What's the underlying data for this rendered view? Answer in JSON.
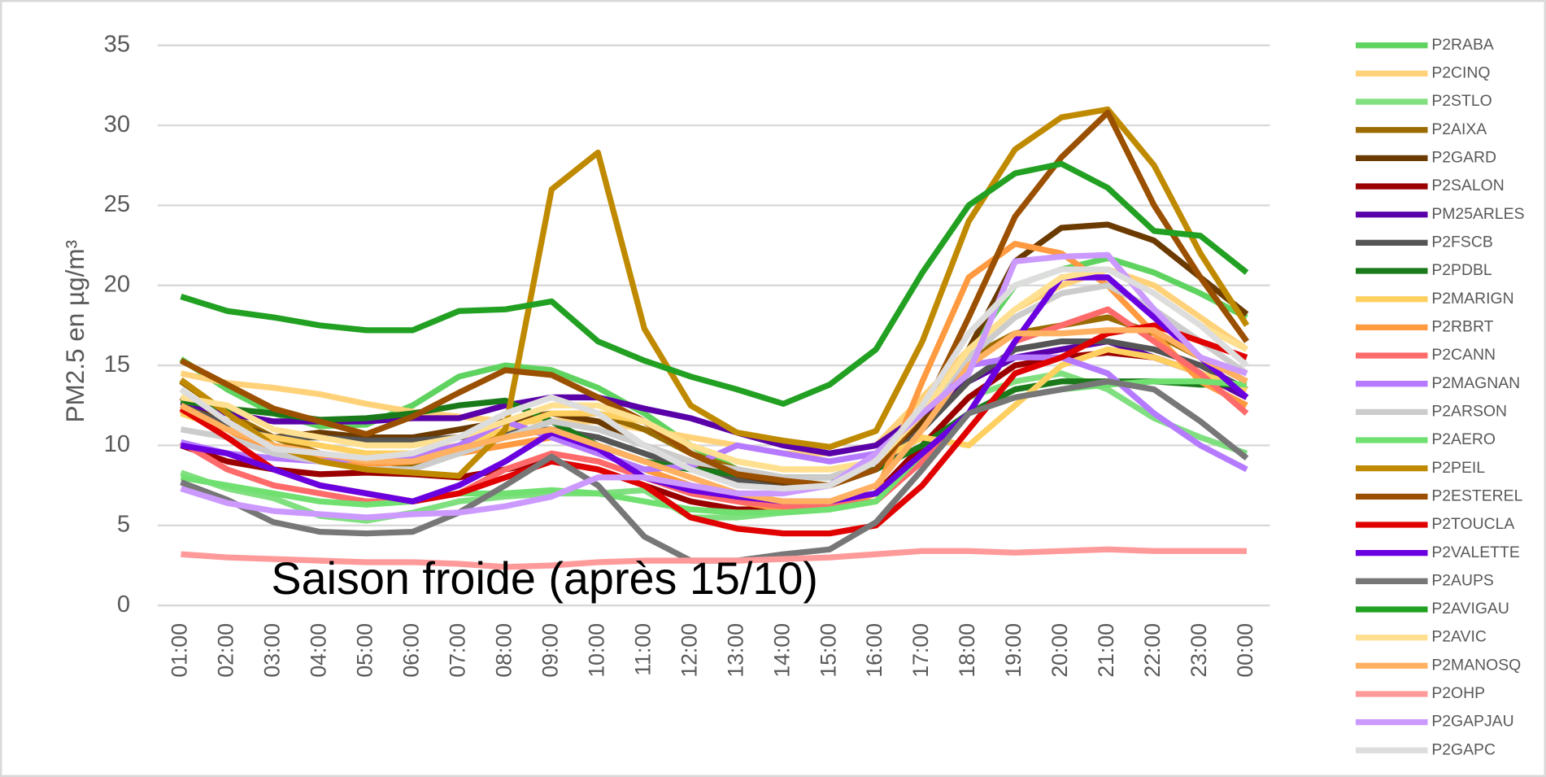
{
  "chart_data": {
    "type": "line",
    "y_label": "PM2.5 en µg/m³",
    "annotation": "Saison froide (après 15/10)",
    "categories": [
      "01:00",
      "02:00",
      "03:00",
      "04:00",
      "05:00",
      "06:00",
      "07:00",
      "08:00",
      "09:00",
      "10:00",
      "11:00",
      "12:00",
      "13:00",
      "14:00",
      "15:00",
      "16:00",
      "17:00",
      "18:00",
      "19:00",
      "20:00",
      "21:00",
      "22:00",
      "23:00",
      "00:00"
    ],
    "ylim": [
      0,
      35
    ],
    "yticks": [
      0,
      5,
      10,
      15,
      20,
      25,
      30,
      35
    ],
    "grid": true,
    "legend": "right",
    "series": [
      {
        "name": "P2RABA",
        "color": "#5fd35f",
        "values": [
          15.4,
          13.5,
          12,
          11.2,
          11.3,
          12.5,
          14.3,
          15,
          14.7,
          13.6,
          12,
          10,
          8.5,
          8,
          8,
          8.5,
          12,
          16,
          20,
          21,
          21.7,
          20.8,
          19.5,
          18
        ]
      },
      {
        "name": "P2CINQ",
        "color": "#ffd27a",
        "values": [
          14.5,
          13.9,
          13.6,
          13.2,
          12.6,
          12.1,
          11.8,
          11.5,
          11.5,
          11.5,
          11,
          10.5,
          10,
          9.5,
          9.5,
          10,
          13,
          16,
          18.5,
          20,
          21,
          20,
          18,
          16
        ]
      },
      {
        "name": "P2STLO",
        "color": "#80e080",
        "values": [
          8.3,
          7.3,
          6.7,
          5.6,
          5.3,
          5.8,
          6.5,
          6.8,
          7,
          7,
          7.2,
          5.5,
          5.5,
          5.8,
          6,
          7,
          10,
          13,
          14,
          14.5,
          13.5,
          11.7,
          10.5,
          9.5
        ]
      },
      {
        "name": "P2AIXA",
        "color": "#9a6b00",
        "values": [
          14,
          12,
          10.5,
          9.5,
          9,
          8.8,
          9.5,
          11,
          12,
          12,
          11,
          9.5,
          8.5,
          8,
          8,
          9,
          12,
          15.5,
          17,
          17.5,
          18,
          17,
          15.5,
          14
        ]
      },
      {
        "name": "P2GARD",
        "color": "#6b3a00",
        "values": [
          13,
          11.5,
          10.5,
          10.8,
          10.5,
          10.5,
          11,
          11.5,
          12,
          11.5,
          10,
          9,
          8,
          7.5,
          7.5,
          8.5,
          11.5,
          16,
          21.5,
          23.6,
          23.8,
          22.8,
          20.5,
          18.2
        ]
      },
      {
        "name": "P2SALON",
        "color": "#9b0000",
        "values": [
          10,
          9,
          8.5,
          8.2,
          8.3,
          8.2,
          8,
          8.5,
          9,
          8.5,
          7.5,
          6.5,
          6,
          6,
          6.5,
          7,
          10,
          13,
          15,
          15.5,
          15.8,
          15.5,
          14.5,
          13
        ]
      },
      {
        "name": "PM25ARLES",
        "color": "#5a00a8",
        "values": [
          12.7,
          12,
          11.5,
          11.5,
          11.5,
          11.7,
          11.7,
          12.5,
          13,
          13,
          12.3,
          11.7,
          10.8,
          10,
          9.5,
          10,
          12,
          14,
          15.5,
          16,
          16.5,
          15.5,
          14.5,
          13
        ]
      },
      {
        "name": "P2FSCB",
        "color": "#555555",
        "values": [
          12.5,
          11.3,
          10.5,
          10.5,
          10.3,
          10.3,
          10.5,
          10.8,
          11,
          10.5,
          9.5,
          8.5,
          7.8,
          7.3,
          7.5,
          8.5,
          11,
          14,
          16,
          16.5,
          16.5,
          16,
          15,
          13.5
        ]
      },
      {
        "name": "P2PDBL",
        "color": "#1a7a1a",
        "values": [
          12.8,
          12.3,
          12,
          11.6,
          11.7,
          12,
          12.5,
          12.8,
          11.5,
          10,
          9,
          8.5,
          8.2,
          8,
          8,
          8.5,
          10,
          12,
          13.5,
          14,
          14,
          14,
          13.8,
          13.8
        ]
      },
      {
        "name": "P2MARIGN",
        "color": "#ffd060",
        "values": [
          12,
          11,
          10.5,
          10,
          9.5,
          9.5,
          10,
          11,
          12,
          12,
          11.5,
          10,
          9,
          8.5,
          8.5,
          9,
          10.5,
          10,
          12.5,
          15,
          16,
          15.5,
          14.5,
          13.5
        ]
      },
      {
        "name": "P2RBRT",
        "color": "#ff9a40",
        "values": [
          12.2,
          11,
          9.5,
          9.2,
          8.8,
          9,
          9.5,
          10,
          10.5,
          9.5,
          8.5,
          7.5,
          6.5,
          6,
          6,
          7,
          14,
          20.5,
          22.6,
          22,
          20,
          17,
          14,
          12.5
        ]
      },
      {
        "name": "P2CANN",
        "color": "#ff6a6a",
        "values": [
          10.2,
          8.5,
          7.5,
          7,
          6.5,
          6.5,
          7,
          8.5,
          9.5,
          9,
          8,
          7,
          6.5,
          6.2,
          6.2,
          6.5,
          9,
          12,
          16.5,
          17.5,
          18.5,
          16.5,
          14.5,
          12
        ]
      },
      {
        "name": "P2MAGNAN",
        "color": "#b57aff",
        "values": [
          10.2,
          9.5,
          9.2,
          9,
          9.2,
          9.3,
          10,
          11.5,
          10.5,
          9.5,
          8.5,
          8.7,
          10,
          9.5,
          9,
          9.5,
          12,
          15,
          15.5,
          15.5,
          14.5,
          12,
          10,
          8.5
        ]
      },
      {
        "name": "P2ARSON",
        "color": "#cccccc",
        "values": [
          11,
          10.5,
          9.5,
          9,
          8.5,
          8.5,
          9.5,
          10.5,
          11.5,
          11,
          10,
          9,
          8.5,
          8,
          8,
          9,
          12,
          15.5,
          18,
          19.5,
          20,
          18.5,
          16.5,
          14.5
        ]
      },
      {
        "name": "P2AERO",
        "color": "#70e070",
        "values": [
          8,
          7.5,
          7,
          6.5,
          6.3,
          6.5,
          7,
          7,
          7.2,
          7,
          6.5,
          6,
          5.8,
          5.8,
          6,
          6.5,
          9.5,
          12,
          13,
          13.5,
          13.8,
          14,
          14,
          13.8
        ]
      },
      {
        "name": "P2PEIL",
        "color": "#c08a00",
        "values": [
          14.1,
          12,
          10,
          9,
          8.5,
          8.3,
          8.1,
          11,
          26,
          28.3,
          17.3,
          12.5,
          10.8,
          10.3,
          9.9,
          10.9,
          16.5,
          24,
          28.5,
          30.5,
          31,
          27.5,
          22,
          17.5
        ]
      },
      {
        "name": "P2ESTEREL",
        "color": "#9a5000",
        "values": [
          15.3,
          13.8,
          12.3,
          11.5,
          10.7,
          11.8,
          13.3,
          14.7,
          14.4,
          13,
          11.5,
          9.5,
          8.2,
          7.8,
          7.5,
          8.5,
          12,
          18,
          24.3,
          28,
          30.8,
          25,
          20.5,
          16.5
        ]
      },
      {
        "name": "P2TOUCLA",
        "color": "#e00000",
        "values": [
          12.3,
          10.5,
          8.5,
          7.5,
          7,
          6.5,
          7,
          8,
          9,
          8.5,
          7.5,
          5.5,
          4.8,
          4.5,
          4.5,
          5,
          7.5,
          11,
          14.5,
          15.5,
          17,
          17.5,
          16.5,
          15.5
        ]
      },
      {
        "name": "P2VALETTE",
        "color": "#6a00e0",
        "values": [
          10,
          9.5,
          8.5,
          7.5,
          7,
          6.5,
          7.5,
          9,
          10.8,
          9.8,
          8,
          7.2,
          6.8,
          6.5,
          6.5,
          7,
          9.5,
          12,
          16.5,
          20.5,
          20.5,
          18,
          15.5,
          13
        ]
      },
      {
        "name": "P2AUPS",
        "color": "#777777",
        "values": [
          7.7,
          6.6,
          5.2,
          4.6,
          4.5,
          4.6,
          5.8,
          7.5,
          9.3,
          7.5,
          4.3,
          2.8,
          2.8,
          3.2,
          3.5,
          5.2,
          8.5,
          12,
          13,
          13.5,
          14,
          13.5,
          11.5,
          9.2
        ]
      },
      {
        "name": "P2AVIGAU",
        "color": "#22a022",
        "values": [
          19.3,
          18.4,
          18,
          17.5,
          17.2,
          17.2,
          18.4,
          18.5,
          19,
          16.5,
          15.3,
          14.3,
          13.5,
          12.6,
          13.8,
          16,
          20.8,
          25,
          27,
          27.6,
          26.1,
          23.4,
          23.1,
          20.8
        ]
      },
      {
        "name": "P2AVIC",
        "color": "#ffe090",
        "values": [
          13,
          12.5,
          11,
          10.5,
          10,
          10,
          10.5,
          11.5,
          12.5,
          12.5,
          11.5,
          10,
          9,
          8.5,
          8.5,
          9,
          12,
          16,
          18.5,
          20.5,
          21,
          19.5,
          17.5,
          16
        ]
      },
      {
        "name": "P2MANOSQ",
        "color": "#ffb060",
        "values": [
          12.5,
          11,
          10,
          9.5,
          9,
          9,
          9.8,
          10.5,
          11,
          10,
          9,
          8,
          7,
          6.5,
          6.5,
          7.5,
          11,
          15,
          17,
          17,
          17.2,
          17.2,
          15.5,
          14
        ]
      },
      {
        "name": "P2OHP",
        "color": "#ff9a9a",
        "values": [
          3.2,
          3.0,
          2.9,
          2.8,
          2.7,
          2.7,
          2.6,
          2.4,
          2.5,
          2.7,
          2.8,
          2.8,
          2.8,
          2.9,
          3.0,
          3.2,
          3.4,
          3.4,
          3.3,
          3.4,
          3.5,
          3.4,
          3.4,
          3.4
        ]
      },
      {
        "name": "P2GAPJAU",
        "color": "#cc99ff",
        "values": [
          7.3,
          6.4,
          5.9,
          5.7,
          5.5,
          5.7,
          5.8,
          6.2,
          6.8,
          8,
          8,
          7.5,
          7,
          7,
          7.5,
          9.5,
          12,
          14.5,
          21.5,
          21.8,
          21.9,
          18.5,
          15.5,
          14.5
        ]
      },
      {
        "name": "P2GAPC",
        "color": "#dddddd",
        "values": [
          13.5,
          11.5,
          9.8,
          9.5,
          9.2,
          9.5,
          10.5,
          12,
          13,
          12,
          10,
          8.5,
          7.5,
          7.3,
          7.5,
          9,
          12.5,
          17,
          20,
          21,
          21,
          19.5,
          17.5,
          15
        ]
      }
    ]
  }
}
